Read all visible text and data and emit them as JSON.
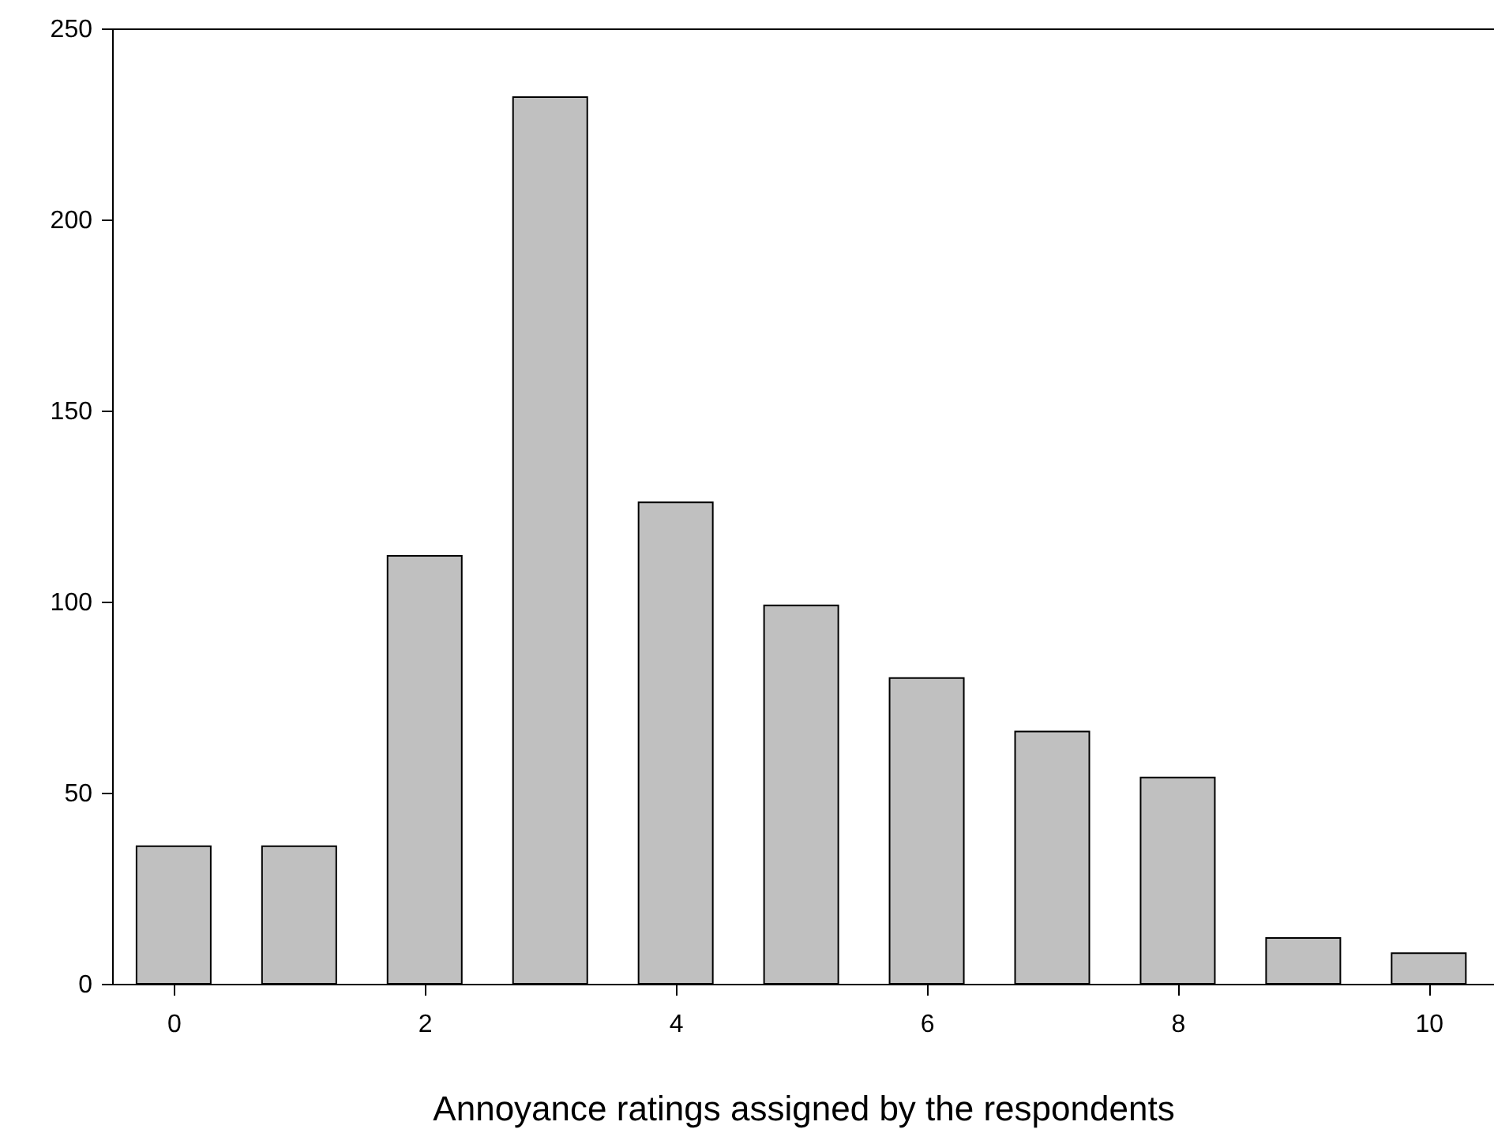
{
  "chart_data": {
    "type": "bar",
    "xlabel": "Annoyance ratings assigned by the respondents",
    "x": [
      0,
      1,
      2,
      3,
      4,
      5,
      6,
      7,
      8,
      9,
      10
    ],
    "values": [
      36,
      36,
      112,
      232,
      126,
      99,
      80,
      66,
      54,
      12,
      8
    ],
    "color": "#c0c0c0",
    "xlim": [
      -0.49,
      10.52
    ],
    "xticks": [
      0,
      2,
      4,
      6,
      8,
      10
    ],
    "ylim": [
      0,
      250
    ],
    "yticks": [
      0,
      50,
      100,
      150,
      200,
      250
    ],
    "grid": false
  }
}
